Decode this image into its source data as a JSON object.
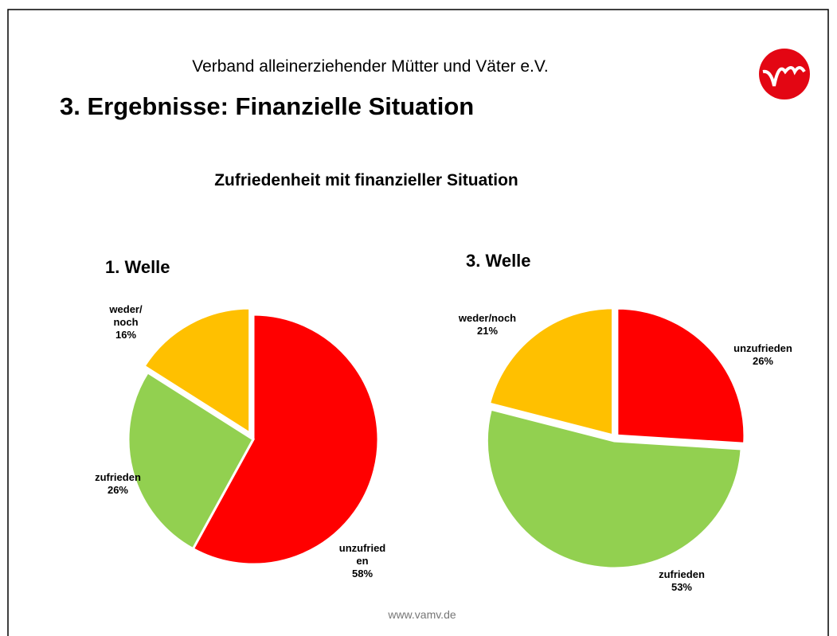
{
  "organization": "Verband alleinerziehender Mütter und Väter e.V.",
  "slide_title": "3. Ergebnisse: Finanzielle Situation",
  "heading": "Zufriedenheit mit finanzieller Situation",
  "footer": "www.vamv.de",
  "chart_data": [
    {
      "type": "pie",
      "title": "1. Welle",
      "categories": [
        "unzufried\nen",
        "zufrieden",
        "weder/\nnoch"
      ],
      "values": [
        58,
        26,
        16
      ],
      "value_labels": [
        "58%",
        "26%",
        "16%"
      ],
      "colors": [
        "#ff0000",
        "#92d050",
        "#ffc000"
      ]
    },
    {
      "type": "pie",
      "title": "3. Welle",
      "categories": [
        "unzufrieden",
        "zufrieden",
        "weder/noch"
      ],
      "values": [
        26,
        53,
        21
      ],
      "value_labels": [
        "26%",
        "53%",
        "21%"
      ],
      "colors": [
        "#ff0000",
        "#92d050",
        "#ffc000"
      ]
    }
  ]
}
